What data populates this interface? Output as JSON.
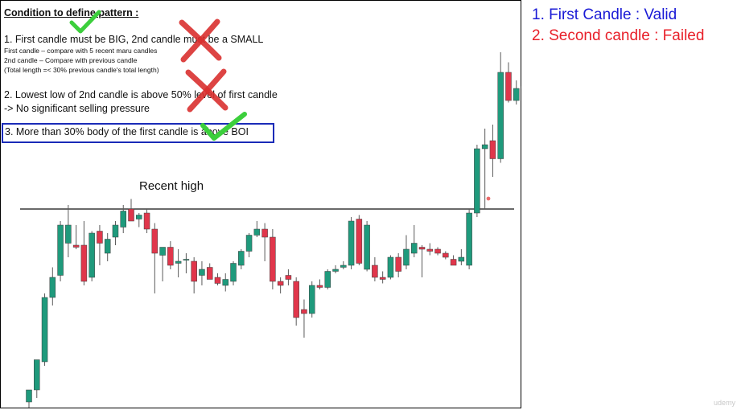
{
  "slide": {
    "title": "Condition to define pattern :",
    "condition_1": "1. First candle must be BIG, 2nd candle must be a SMALL",
    "condition_1_notes": [
      "First candle – compare with  5 recent maru candles",
      "2nd candle – Compare with previous candle",
      "(Total length =< 30% previous candle's total length)"
    ],
    "condition_2": "2. Lowest low of 2nd candle is above 50% level of first candle",
    "condition_2_note": "-> No significant selling pressure",
    "condition_3": "3. More than 30% body of the first  candle is above BOI",
    "recent_high_label": "Recent high"
  },
  "results": {
    "first": "1. First Candle : Valid",
    "second": "2. Second candle : Failed"
  },
  "watermark": "udemy",
  "colors": {
    "bull": "#1f9a7c",
    "bear": "#e0364b",
    "valid_text": "#1a1ad6",
    "failed_text": "#e8202a",
    "box_border": "#1a2bb8",
    "check_mark": "#3ccf3c",
    "cross_mark": "#d9302f"
  },
  "marks": {
    "check_icon": "green-check",
    "cross_icon": "red-cross"
  },
  "chart_data": {
    "type": "candlestick",
    "title": "",
    "xlabel": "",
    "ylabel": "",
    "ylim": [
      0,
      100
    ],
    "recent_high_level": 48.0,
    "candles": [
      {
        "o": 0.0,
        "h": 2.0,
        "l": -5.0,
        "c": 3.0
      },
      {
        "o": 3.0,
        "h": 10.0,
        "l": 1.0,
        "c": 10.5
      },
      {
        "o": 10.0,
        "h": 27.0,
        "l": 9.0,
        "c": 26.0
      },
      {
        "o": 26.0,
        "h": 33.5,
        "l": 24.0,
        "c": 31.0
      },
      {
        "o": 31.5,
        "h": 45.0,
        "l": 30.0,
        "c": 44.0
      },
      {
        "o": 39.5,
        "h": 49.0,
        "l": 36.0,
        "c": 44.0
      },
      {
        "o": 39.0,
        "h": 44.0,
        "l": 38.0,
        "c": 38.5
      },
      {
        "o": 39.0,
        "h": 45.0,
        "l": 29.0,
        "c": 30.0
      },
      {
        "o": 31.0,
        "h": 42.5,
        "l": 30.0,
        "c": 42.0
      },
      {
        "o": 42.5,
        "h": 44.0,
        "l": 34.0,
        "c": 39.5
      },
      {
        "o": 37.0,
        "h": 42.0,
        "l": 35.0,
        "c": 40.5
      },
      {
        "o": 41.0,
        "h": 45.0,
        "l": 39.0,
        "c": 44.0
      },
      {
        "o": 43.5,
        "h": 49.0,
        "l": 42.0,
        "c": 47.5
      },
      {
        "o": 48.0,
        "h": 50.5,
        "l": 45.0,
        "c": 45.0
      },
      {
        "o": 45.5,
        "h": 47.0,
        "l": 43.5,
        "c": 46.5
      },
      {
        "o": 47.0,
        "h": 48.0,
        "l": 42.0,
        "c": 43.0
      },
      {
        "o": 43.0,
        "h": 44.5,
        "l": 27.0,
        "c": 37.0
      },
      {
        "o": 36.5,
        "h": 38.0,
        "l": 30.0,
        "c": 38.5
      },
      {
        "o": 38.5,
        "h": 40.0,
        "l": 33.0,
        "c": 34.0
      },
      {
        "o": 34.5,
        "h": 38.0,
        "l": 31.0,
        "c": 35.0
      },
      {
        "o": 35.5,
        "h": 37.0,
        "l": 32.0,
        "c": 35.5
      },
      {
        "o": 35.0,
        "h": 36.0,
        "l": 27.0,
        "c": 30.0
      },
      {
        "o": 31.5,
        "h": 35.0,
        "l": 29.0,
        "c": 33.0
      },
      {
        "o": 33.5,
        "h": 34.5,
        "l": 31.0,
        "c": 30.5
      },
      {
        "o": 31.0,
        "h": 32.0,
        "l": 29.0,
        "c": 29.5
      },
      {
        "o": 29.0,
        "h": 32.0,
        "l": 27.5,
        "c": 30.5
      },
      {
        "o": 30.0,
        "h": 35.0,
        "l": 29.0,
        "c": 34.5
      },
      {
        "o": 34.0,
        "h": 38.0,
        "l": 33.0,
        "c": 37.5
      },
      {
        "o": 37.5,
        "h": 42.0,
        "l": 36.0,
        "c": 41.5
      },
      {
        "o": 41.5,
        "h": 45.0,
        "l": 41.0,
        "c": 43.0
      },
      {
        "o": 43.0,
        "h": 44.5,
        "l": 35.0,
        "c": 41.0
      },
      {
        "o": 41.0,
        "h": 43.0,
        "l": 28.0,
        "c": 30.0
      },
      {
        "o": 30.0,
        "h": 31.0,
        "l": 27.0,
        "c": 29.0
      },
      {
        "o": 31.5,
        "h": 33.0,
        "l": 29.0,
        "c": 30.5
      },
      {
        "o": 30.0,
        "h": 31.0,
        "l": 19.0,
        "c": 21.0
      },
      {
        "o": 23.0,
        "h": 25.5,
        "l": 16.0,
        "c": 22.0
      },
      {
        "o": 22.0,
        "h": 30.0,
        "l": 21.0,
        "c": 29.0
      },
      {
        "o": 29.0,
        "h": 30.5,
        "l": 28.0,
        "c": 28.5
      },
      {
        "o": 28.5,
        "h": 33.0,
        "l": 28.0,
        "c": 32.5
      },
      {
        "o": 32.5,
        "h": 34.0,
        "l": 32.0,
        "c": 33.0
      },
      {
        "o": 33.5,
        "h": 35.0,
        "l": 33.0,
        "c": 34.0
      },
      {
        "o": 34.0,
        "h": 46.0,
        "l": 33.0,
        "c": 45.0
      },
      {
        "o": 45.5,
        "h": 46.5,
        "l": 34.0,
        "c": 34.5
      },
      {
        "o": 33.0,
        "h": 45.0,
        "l": 32.5,
        "c": 44.0
      },
      {
        "o": 34.0,
        "h": 36.0,
        "l": 30.0,
        "c": 31.0
      },
      {
        "o": 31.0,
        "h": 32.5,
        "l": 29.5,
        "c": 30.5
      },
      {
        "o": 31.0,
        "h": 36.5,
        "l": 30.5,
        "c": 36.0
      },
      {
        "o": 36.0,
        "h": 37.0,
        "l": 31.0,
        "c": 32.5
      },
      {
        "o": 34.0,
        "h": 41.5,
        "l": 33.0,
        "c": 38.0
      },
      {
        "o": 37.0,
        "h": 44.0,
        "l": 36.0,
        "c": 39.5
      },
      {
        "o": 38.5,
        "h": 39.0,
        "l": 31.0,
        "c": 38.0
      },
      {
        "o": 38.0,
        "h": 39.5,
        "l": 36.5,
        "c": 37.5
      },
      {
        "o": 38.0,
        "h": 38.5,
        "l": 36.5,
        "c": 37.0
      },
      {
        "o": 37.0,
        "h": 37.5,
        "l": 35.5,
        "c": 36.0
      },
      {
        "o": 35.5,
        "h": 36.5,
        "l": 34.0,
        "c": 34.0
      },
      {
        "o": 35.0,
        "h": 38.0,
        "l": 34.0,
        "c": 36.0
      },
      {
        "o": 34.0,
        "h": 48.0,
        "l": 33.0,
        "c": 47.0
      },
      {
        "o": 47.0,
        "h": 64.0,
        "l": 46.0,
        "c": 63.0
      },
      {
        "o": 63.0,
        "h": 68.0,
        "l": 48.0,
        "c": 64.0
      },
      {
        "o": 65.0,
        "h": 69.0,
        "l": 56.0,
        "c": 60.5
      },
      {
        "o": 60.5,
        "h": 87.0,
        "l": 59.5,
        "c": 82.0
      },
      {
        "o": 82.0,
        "h": 84.5,
        "l": 74.5,
        "c": 75.0
      },
      {
        "o": 75.0,
        "h": 80.0,
        "l": 74.0,
        "c": 78.0
      },
      {
        "o": 78.0,
        "h": 79.5,
        "l": 72.0,
        "c": 78.5
      }
    ]
  }
}
